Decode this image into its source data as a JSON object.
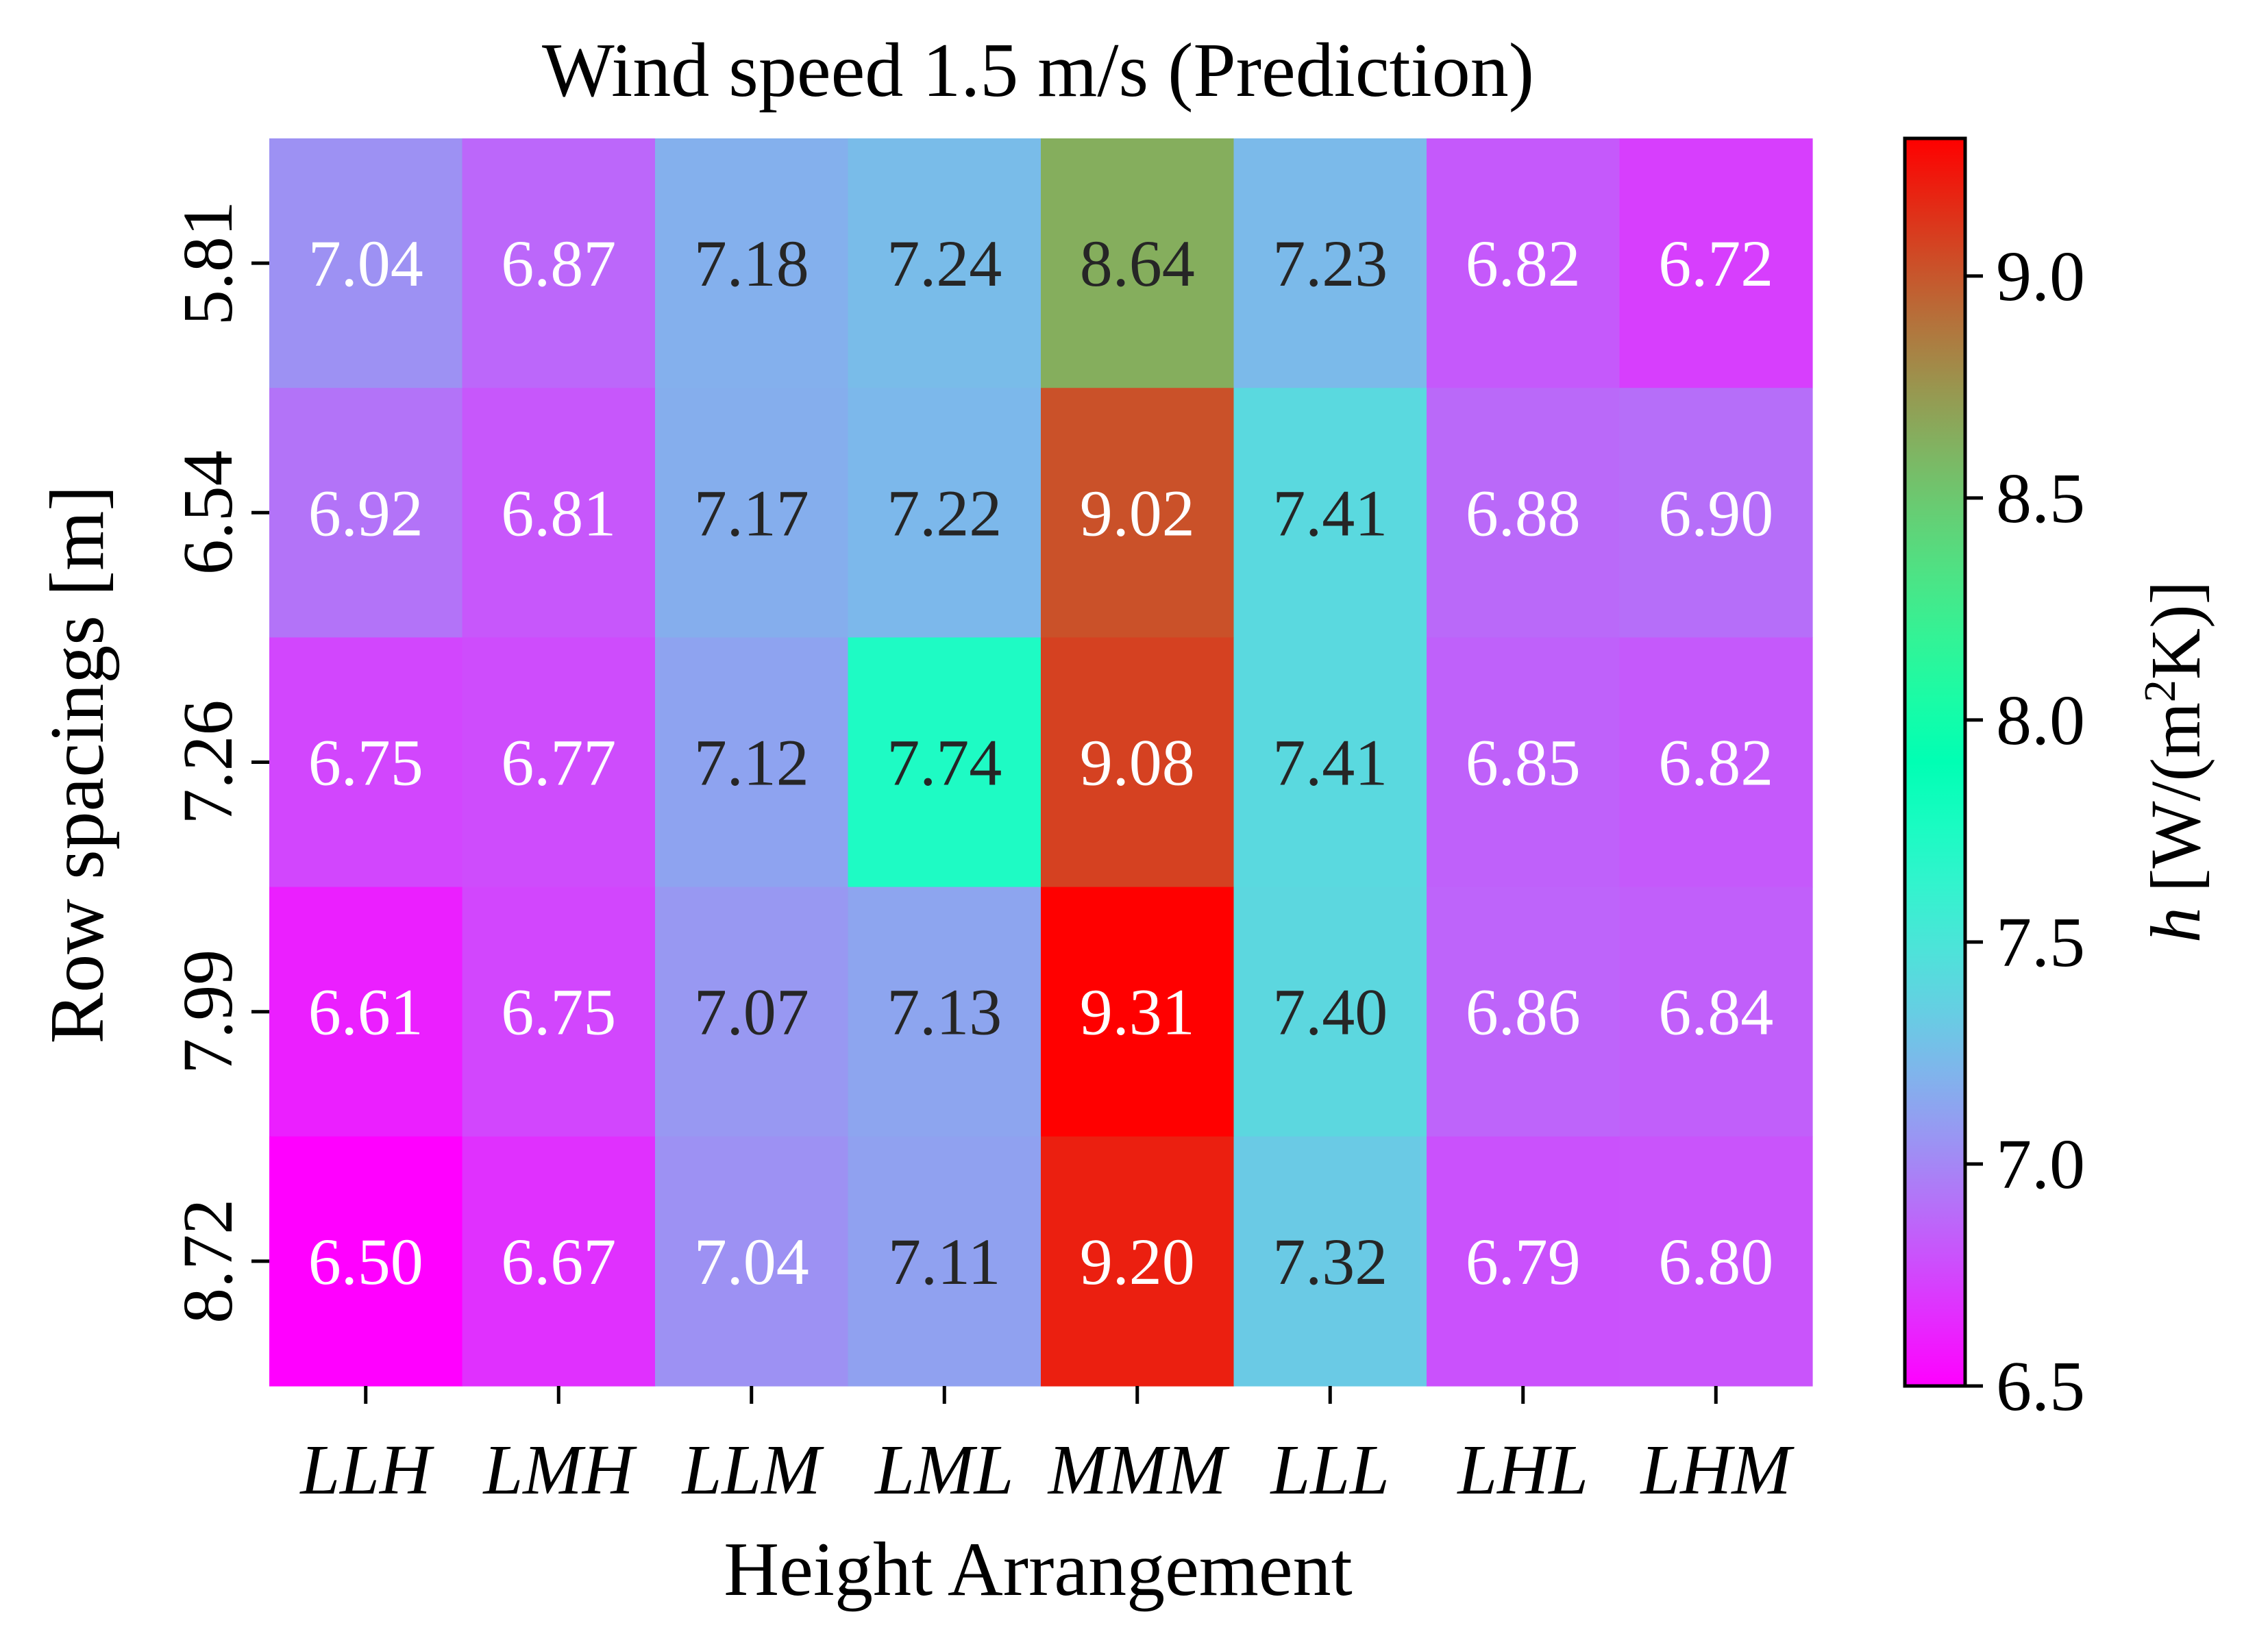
{
  "chart_data": {
    "type": "heatmap",
    "title": "Wind speed 1.5 m/s (Prediction)",
    "xlabel": "Height Arrangement",
    "ylabel": "Row spacings [m]",
    "x_categories": [
      "LLH",
      "LMH",
      "LLM",
      "LML",
      "MMM",
      "LLL",
      "LHL",
      "LHM"
    ],
    "y_categories": [
      "5.81",
      "6.54",
      "7.26",
      "7.99",
      "8.72"
    ],
    "values": [
      [
        7.04,
        6.87,
        7.18,
        7.24,
        8.64,
        7.23,
        6.82,
        6.72
      ],
      [
        6.92,
        6.81,
        7.17,
        7.22,
        9.02,
        7.41,
        6.88,
        6.9
      ],
      [
        6.75,
        6.77,
        7.12,
        7.74,
        9.08,
        7.41,
        6.85,
        6.82
      ],
      [
        6.61,
        6.75,
        7.07,
        7.13,
        9.31,
        7.4,
        6.86,
        6.84
      ],
      [
        6.5,
        6.67,
        7.04,
        7.11,
        9.2,
        7.32,
        6.79,
        6.8
      ]
    ],
    "value_labels": [
      [
        "7.04",
        "6.87",
        "7.18",
        "7.24",
        "8.64",
        "7.23",
        "6.82",
        "6.72"
      ],
      [
        "6.92",
        "6.81",
        "7.17",
        "7.22",
        "9.02",
        "7.41",
        "6.88",
        "6.90"
      ],
      [
        "6.75",
        "6.77",
        "7.12",
        "7.74",
        "9.08",
        "7.41",
        "6.85",
        "6.82"
      ],
      [
        "6.61",
        "6.75",
        "7.07",
        "7.13",
        "9.31",
        "7.40",
        "6.86",
        "6.84"
      ],
      [
        "6.50",
        "6.67",
        "7.04",
        "7.11",
        "9.20",
        "7.32",
        "6.79",
        "6.80"
      ]
    ],
    "colorbar": {
      "label_italic": "h",
      "label_pre": "[W/(m",
      "label_sup": "2",
      "label_post": "K)]",
      "range": [
        6.5,
        9.31
      ],
      "ticks": [
        6.5,
        7.0,
        7.5,
        8.0,
        8.5,
        9.0
      ],
      "tick_labels": [
        "6.5",
        "7.0",
        "7.5",
        "8.0",
        "8.5",
        "9.0"
      ],
      "colormap": "rainbow"
    },
    "colors": {
      "dark_text": "#262626",
      "light_text": "#ffffff"
    }
  }
}
